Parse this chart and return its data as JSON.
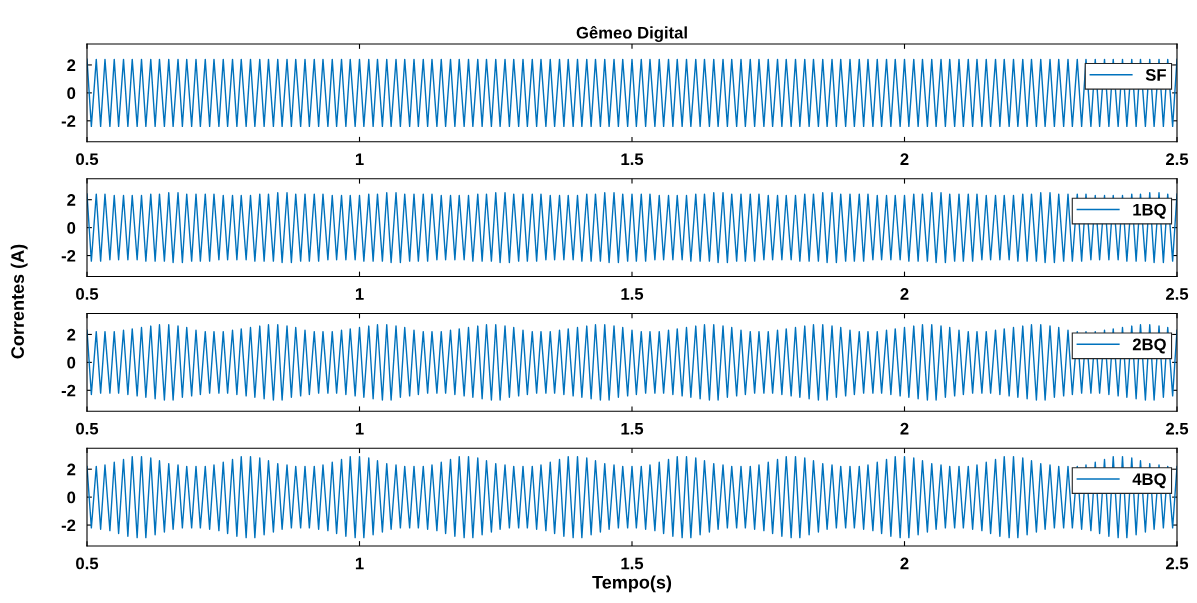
{
  "chart_data": [
    {
      "type": "line",
      "title": "Gêmeo Digital",
      "xlim": [
        0.5,
        2.5
      ],
      "xticks": [
        0.5,
        1,
        1.5,
        2,
        2.5
      ],
      "ylim": [
        -3.5,
        3.5
      ],
      "yticks": [
        -2,
        0,
        2
      ],
      "legend": "top right",
      "grid": false,
      "marker": "none",
      "line_style": "solid",
      "x": [
        0.5,
        0.508,
        0.517,
        0.525,
        0.533,
        0.542,
        0.55,
        0.558,
        0.567,
        0.575,
        0.583,
        0.592,
        0.6,
        0.608,
        0.617,
        0.625,
        0.633,
        0.642,
        0.65,
        0.658,
        0.667,
        0.675,
        0.683,
        0.692,
        0.7,
        0.708,
        0.717,
        0.725,
        0.733,
        0.742,
        0.75,
        0.758,
        0.767,
        0.775,
        0.783,
        0.792,
        0.8,
        0.808,
        0.817,
        0.825,
        0.833,
        0.842,
        0.85,
        0.858,
        0.867,
        0.875,
        0.883,
        0.892,
        0.9,
        0.908,
        0.917,
        0.925,
        0.933,
        0.942,
        0.95,
        0.958,
        0.967,
        0.975,
        0.983,
        0.992,
        1.0,
        1.008,
        1.017,
        1.025,
        1.033,
        1.042,
        1.05,
        1.058,
        1.067,
        1.075,
        1.083,
        1.092,
        1.1,
        1.108,
        1.117,
        1.125,
        1.133,
        1.142,
        1.15,
        1.158,
        1.167,
        1.175,
        1.183,
        1.192,
        1.2,
        1.208,
        1.217,
        1.225,
        1.233,
        1.242,
        1.25,
        1.258,
        1.267,
        1.275,
        1.283,
        1.292,
        1.3,
        1.308,
        1.317,
        1.325,
        1.333,
        1.342,
        1.35,
        1.358,
        1.367,
        1.375,
        1.383,
        1.392,
        1.4,
        1.408,
        1.417,
        1.425,
        1.433,
        1.442,
        1.45,
        1.458,
        1.467,
        1.475,
        1.483,
        1.492,
        1.5,
        1.508,
        1.517,
        1.525,
        1.533,
        1.542,
        1.55,
        1.558,
        1.567,
        1.575,
        1.583,
        1.592,
        1.6,
        1.608,
        1.617,
        1.625,
        1.633,
        1.642,
        1.65,
        1.658,
        1.667,
        1.675,
        1.683,
        1.692,
        1.7,
        1.708,
        1.717,
        1.725,
        1.733,
        1.742,
        1.75,
        1.758,
        1.767,
        1.775,
        1.783,
        1.792,
        1.8,
        1.808,
        1.817,
        1.825,
        1.833,
        1.842,
        1.85,
        1.858,
        1.867,
        1.875,
        1.883,
        1.892,
        1.9,
        1.908,
        1.917,
        1.925,
        1.933,
        1.942,
        1.95,
        1.958,
        1.967,
        1.975,
        1.983,
        1.992,
        2.0,
        2.008,
        2.017,
        2.025,
        2.033,
        2.042,
        2.05,
        2.058,
        2.067,
        2.075,
        2.083,
        2.092,
        2.1,
        2.108,
        2.117,
        2.125,
        2.133,
        2.142,
        2.15,
        2.158,
        2.167,
        2.175,
        2.183,
        2.192,
        2.2,
        2.208,
        2.217,
        2.225,
        2.233,
        2.242,
        2.25,
        2.258,
        2.267,
        2.275,
        2.283,
        2.292,
        2.3,
        2.308,
        2.317,
        2.325,
        2.333,
        2.342,
        2.35,
        2.358,
        2.367,
        2.375,
        2.383,
        2.392,
        2.4,
        2.408,
        2.417,
        2.425,
        2.433,
        2.442,
        2.45,
        2.458,
        2.467,
        2.475,
        2.483,
        2.492,
        2.5
      ],
      "series": [
        {
          "name": "SF",
          "color": "#0072bd",
          "values": [
            2.4,
            -2.4,
            2.4,
            -2.4,
            2.4,
            -2.4,
            2.4,
            -2.4,
            2.4,
            -2.4,
            2.4,
            -2.4,
            2.4,
            -2.4,
            2.4,
            -2.4,
            2.4,
            -2.4,
            2.4,
            -2.4,
            2.4,
            -2.4,
            2.4,
            -2.4,
            2.4,
            -2.4,
            2.4,
            -2.4,
            2.4,
            -2.4,
            2.4,
            -2.4,
            2.4,
            -2.4,
            2.4,
            -2.4,
            2.4,
            -2.4,
            2.4,
            -2.4,
            2.4,
            -2.4,
            2.4,
            -2.4,
            2.4,
            -2.4,
            2.4,
            -2.4,
            2.4,
            -2.4,
            2.4,
            -2.4,
            2.4,
            -2.4,
            2.4,
            -2.4,
            2.4,
            -2.4,
            2.4,
            -2.4,
            2.4,
            -2.4,
            2.4,
            -2.4,
            2.4,
            -2.4,
            2.4,
            -2.4,
            2.4,
            -2.4,
            2.4,
            -2.4,
            2.4,
            -2.4,
            2.4,
            -2.4,
            2.4,
            -2.4,
            2.4,
            -2.4,
            2.4,
            -2.4,
            2.4,
            -2.4,
            2.4,
            -2.4,
            2.4,
            -2.4,
            2.4,
            -2.4,
            2.4,
            -2.4,
            2.4,
            -2.4,
            2.4,
            -2.4,
            2.4,
            -2.4,
            2.4,
            -2.4,
            2.4,
            -2.4,
            2.4,
            -2.4,
            2.4,
            -2.4,
            2.4,
            -2.4,
            2.4,
            -2.4,
            2.4,
            -2.4,
            2.4,
            -2.4,
            2.4,
            -2.4,
            2.4,
            -2.4,
            2.4,
            -2.4,
            2.4,
            -2.4,
            2.4,
            -2.4,
            2.4,
            -2.4,
            2.4,
            -2.4,
            2.4,
            -2.4,
            2.4,
            -2.4,
            2.4,
            -2.4,
            2.4,
            -2.4,
            2.4,
            -2.4,
            2.4,
            -2.4,
            2.4,
            -2.4,
            2.4,
            -2.4,
            2.4,
            -2.4,
            2.4,
            -2.4,
            2.4,
            -2.4,
            2.4,
            -2.4,
            2.4,
            -2.4,
            2.4,
            -2.4,
            2.4,
            -2.4,
            2.4,
            -2.4,
            2.4,
            -2.4,
            2.4,
            -2.4,
            2.4,
            -2.4,
            2.4,
            -2.4,
            2.4,
            -2.4,
            2.4,
            -2.4,
            2.4,
            -2.4,
            2.4,
            -2.4,
            2.4,
            -2.4,
            2.4,
            -2.4,
            2.4,
            -2.4,
            2.4,
            -2.4,
            2.4,
            -2.4,
            2.4,
            -2.4,
            2.4,
            -2.4,
            2.4,
            -2.4,
            2.4,
            -2.4,
            2.4,
            -2.4,
            2.4,
            -2.4,
            2.4,
            -2.4,
            2.4,
            -2.4,
            2.4,
            -2.4,
            2.4,
            -2.4,
            2.4,
            -2.4,
            2.4,
            -2.4,
            2.4,
            -2.4,
            2.4,
            -2.4,
            2.4,
            -2.4,
            2.4,
            -2.4,
            2.4,
            -2.4,
            2.4,
            -2.4,
            2.4,
            -2.4,
            2.4,
            -2.4,
            2.4,
            -2.4,
            2.4,
            -2.4,
            2.4,
            -2.4,
            2.4,
            -2.4,
            2.4,
            -2.4,
            2.4,
            -2.4,
            2.4,
            -2.4,
            2.4
          ]
        }
      ]
    },
    {
      "type": "line",
      "ylabel": "Correntes (A)",
      "xlim": [
        0.5,
        2.5
      ],
      "xticks": [
        0.5,
        1,
        1.5,
        2,
        2.5
      ],
      "ylim": [
        -3.5,
        3.5
      ],
      "yticks": [
        -2,
        0,
        2
      ],
      "legend": "top right",
      "grid": false,
      "marker": "none",
      "line_style": "solid",
      "x": [
        0.5,
        0.508,
        0.517,
        0.525,
        0.533,
        0.542,
        0.55,
        0.558,
        0.567,
        0.575,
        0.583,
        0.592,
        0.6,
        0.608,
        0.617,
        0.625,
        0.633,
        0.642,
        0.65,
        0.658,
        0.667,
        0.675,
        0.683,
        0.692,
        0.7,
        0.708,
        0.717,
        0.725,
        0.733,
        0.742,
        0.75,
        0.758,
        0.767,
        0.775,
        0.783,
        0.792,
        0.8,
        0.808,
        0.817,
        0.825,
        0.833,
        0.842,
        0.85,
        0.858,
        0.867,
        0.875,
        0.883,
        0.892,
        0.9,
        0.908,
        0.917,
        0.925,
        0.933,
        0.942,
        0.95,
        0.958,
        0.967,
        0.975,
        0.983,
        0.992,
        1.0,
        1.008,
        1.017,
        1.025,
        1.033,
        1.042,
        1.05,
        1.058,
        1.067,
        1.075,
        1.083,
        1.092,
        1.1,
        1.108,
        1.117,
        1.125,
        1.133,
        1.142,
        1.15,
        1.158,
        1.167,
        1.175,
        1.183,
        1.192,
        1.2,
        1.208,
        1.217,
        1.225,
        1.233,
        1.242,
        1.25,
        1.258,
        1.267,
        1.275,
        1.283,
        1.292,
        1.3,
        1.308,
        1.317,
        1.325,
        1.333,
        1.342,
        1.35,
        1.358,
        1.367,
        1.375,
        1.383,
        1.392,
        1.4,
        1.408,
        1.417,
        1.425,
        1.433,
        1.442,
        1.45,
        1.458,
        1.467,
        1.475,
        1.483,
        1.492,
        1.5,
        1.508,
        1.517,
        1.525,
        1.533,
        1.542,
        1.55,
        1.558,
        1.567,
        1.575,
        1.583,
        1.592,
        1.6,
        1.608,
        1.617,
        1.625,
        1.633,
        1.642,
        1.65,
        1.658,
        1.667,
        1.675,
        1.683,
        1.692,
        1.7,
        1.708,
        1.717,
        1.725,
        1.733,
        1.742,
        1.75,
        1.758,
        1.767,
        1.775,
        1.783,
        1.792,
        1.8,
        1.808,
        1.817,
        1.825,
        1.833,
        1.842,
        1.85,
        1.858,
        1.867,
        1.875,
        1.883,
        1.892,
        1.9,
        1.908,
        1.917,
        1.925,
        1.933,
        1.942,
        1.95,
        1.958,
        1.967,
        1.975,
        1.983,
        1.992,
        2.0,
        2.008,
        2.017,
        2.025,
        2.033,
        2.042,
        2.05,
        2.058,
        2.067,
        2.075,
        2.083,
        2.092,
        2.1,
        2.108,
        2.117,
        2.125,
        2.133,
        2.142,
        2.15,
        2.158,
        2.167,
        2.175,
        2.183,
        2.192,
        2.2,
        2.208,
        2.217,
        2.225,
        2.233,
        2.242,
        2.25,
        2.258,
        2.267,
        2.275,
        2.283,
        2.292,
        2.3,
        2.308,
        2.317,
        2.325,
        2.333,
        2.342,
        2.35,
        2.358,
        2.367,
        2.375,
        2.383,
        2.392,
        2.4,
        2.408,
        2.417,
        2.425,
        2.433,
        2.442,
        2.45,
        2.458,
        2.467,
        2.475,
        2.483,
        2.492,
        2.5
      ],
      "series": [
        {
          "name": "1BQ",
          "color": "#0072bd",
          "values": [
            2.4,
            -2.4,
            2.4,
            -2.4,
            2.4,
            -2.3,
            2.3,
            -2.3,
            2.3,
            -2.3,
            2.3,
            -2.3,
            2.3,
            -2.4,
            2.4,
            -2.4,
            2.4,
            -2.4,
            2.5,
            -2.5,
            2.5,
            -2.5,
            2.4,
            -2.4,
            2.4,
            -2.4,
            2.4,
            -2.4,
            2.4,
            -2.3,
            2.3,
            -2.3,
            2.3,
            -2.3,
            2.3,
            -2.3,
            2.3,
            -2.4,
            2.4,
            -2.4,
            2.4,
            -2.4,
            2.5,
            -2.5,
            2.5,
            -2.5,
            2.4,
            -2.4,
            2.4,
            -2.4,
            2.4,
            -2.4,
            2.4,
            -2.3,
            2.3,
            -2.3,
            2.3,
            -2.3,
            2.3,
            -2.3,
            2.3,
            -2.4,
            2.4,
            -2.4,
            2.4,
            -2.4,
            2.5,
            -2.5,
            2.5,
            -2.5,
            2.4,
            -2.4,
            2.4,
            -2.4,
            2.4,
            -2.4,
            2.4,
            -2.3,
            2.3,
            -2.3,
            2.3,
            -2.3,
            2.3,
            -2.3,
            2.3,
            -2.4,
            2.4,
            -2.4,
            2.4,
            -2.4,
            2.5,
            -2.5,
            2.5,
            -2.5,
            2.4,
            -2.4,
            2.4,
            -2.4,
            2.4,
            -2.4,
            2.4,
            -2.3,
            2.3,
            -2.3,
            2.3,
            -2.3,
            2.3,
            -2.3,
            2.3,
            -2.4,
            2.4,
            -2.4,
            2.4,
            -2.4,
            2.5,
            -2.5,
            2.5,
            -2.5,
            2.4,
            -2.4,
            2.4,
            -2.4,
            2.4,
            -2.4,
            2.4,
            -2.3,
            2.3,
            -2.3,
            2.3,
            -2.3,
            2.3,
            -2.3,
            2.3,
            -2.4,
            2.4,
            -2.4,
            2.4,
            -2.4,
            2.5,
            -2.5,
            2.5,
            -2.5,
            2.4,
            -2.4,
            2.4,
            -2.4,
            2.4,
            -2.4,
            2.4,
            -2.3,
            2.3,
            -2.3,
            2.3,
            -2.3,
            2.3,
            -2.3,
            2.3,
            -2.4,
            2.4,
            -2.4,
            2.4,
            -2.4,
            2.5,
            -2.5,
            2.5,
            -2.5,
            2.4,
            -2.4,
            2.4,
            -2.4,
            2.4,
            -2.4,
            2.4,
            -2.3,
            2.3,
            -2.3,
            2.3,
            -2.3,
            2.3,
            -2.3,
            2.3,
            -2.4,
            2.4,
            -2.4,
            2.4,
            -2.4,
            2.5,
            -2.5,
            2.5,
            -2.5,
            2.4,
            -2.4,
            2.4,
            -2.4,
            2.4,
            -2.4,
            2.4,
            -2.3,
            2.3,
            -2.3,
            2.3,
            -2.3,
            2.3,
            -2.3,
            2.3,
            -2.4,
            2.4,
            -2.4,
            2.4,
            -2.4,
            2.5,
            -2.5,
            2.5,
            -2.5,
            2.4,
            -2.4,
            2.4,
            -2.4,
            2.4,
            -2.4,
            2.4,
            -2.3,
            2.3,
            -2.3,
            2.3,
            -2.3,
            2.3,
            -2.3,
            2.3,
            -2.4,
            2.4,
            -2.4,
            2.4,
            -2.4,
            2.5,
            -2.5,
            2.5,
            -2.5,
            2.4,
            -2.4,
            2.4
          ]
        }
      ]
    },
    {
      "type": "line",
      "xlim": [
        0.5,
        2.5
      ],
      "xticks": [
        0.5,
        1,
        1.5,
        2,
        2.5
      ],
      "ylim": [
        -3.5,
        3.5
      ],
      "yticks": [
        -2,
        0,
        2
      ],
      "legend": "top right",
      "grid": false,
      "marker": "none",
      "line_style": "solid",
      "x": [
        0.5,
        0.508,
        0.517,
        0.525,
        0.533,
        0.542,
        0.55,
        0.558,
        0.567,
        0.575,
        0.583,
        0.592,
        0.6,
        0.608,
        0.617,
        0.625,
        0.633,
        0.642,
        0.65,
        0.658,
        0.667,
        0.675,
        0.683,
        0.692,
        0.7,
        0.708,
        0.717,
        0.725,
        0.733,
        0.742,
        0.75,
        0.758,
        0.767,
        0.775,
        0.783,
        0.792,
        0.8,
        0.808,
        0.817,
        0.825,
        0.833,
        0.842,
        0.85,
        0.858,
        0.867,
        0.875,
        0.883,
        0.892,
        0.9,
        0.908,
        0.917,
        0.925,
        0.933,
        0.942,
        0.95,
        0.958,
        0.967,
        0.975,
        0.983,
        0.992,
        1.0,
        1.008,
        1.017,
        1.025,
        1.033,
        1.042,
        1.05,
        1.058,
        1.067,
        1.075,
        1.083,
        1.092,
        1.1,
        1.108,
        1.117,
        1.125,
        1.133,
        1.142,
        1.15,
        1.158,
        1.167,
        1.175,
        1.183,
        1.192,
        1.2,
        1.208,
        1.217,
        1.225,
        1.233,
        1.242,
        1.25,
        1.258,
        1.267,
        1.275,
        1.283,
        1.292,
        1.3,
        1.308,
        1.317,
        1.325,
        1.333,
        1.342,
        1.35,
        1.358,
        1.367,
        1.375,
        1.383,
        1.392,
        1.4,
        1.408,
        1.417,
        1.425,
        1.433,
        1.442,
        1.45,
        1.458,
        1.467,
        1.475,
        1.483,
        1.492,
        1.5,
        1.508,
        1.517,
        1.525,
        1.533,
        1.542,
        1.55,
        1.558,
        1.567,
        1.575,
        1.583,
        1.592,
        1.6,
        1.608,
        1.617,
        1.625,
        1.633,
        1.642,
        1.65,
        1.658,
        1.667,
        1.675,
        1.683,
        1.692,
        1.7,
        1.708,
        1.717,
        1.725,
        1.733,
        1.742,
        1.75,
        1.758,
        1.767,
        1.775,
        1.783,
        1.792,
        1.8,
        1.808,
        1.817,
        1.825,
        1.833,
        1.842,
        1.85,
        1.858,
        1.867,
        1.875,
        1.883,
        1.892,
        1.9,
        1.908,
        1.917,
        1.925,
        1.933,
        1.942,
        1.95,
        1.958,
        1.967,
        1.975,
        1.983,
        1.992,
        2.0,
        2.008,
        2.017,
        2.025,
        2.033,
        2.042,
        2.05,
        2.058,
        2.067,
        2.075,
        2.083,
        2.092,
        2.1,
        2.108,
        2.117,
        2.125,
        2.133,
        2.142,
        2.15,
        2.158,
        2.167,
        2.175,
        2.183,
        2.192,
        2.2,
        2.208,
        2.217,
        2.225,
        2.233,
        2.242,
        2.25,
        2.258,
        2.267,
        2.275,
        2.283,
        2.292,
        2.3,
        2.308,
        2.317,
        2.325,
        2.333,
        2.342,
        2.35,
        2.358,
        2.367,
        2.375,
        2.383,
        2.392,
        2.4,
        2.408,
        2.417,
        2.425,
        2.433,
        2.442,
        2.45,
        2.458,
        2.467,
        2.475,
        2.483,
        2.492,
        2.5
      ],
      "series": [
        {
          "name": "2BQ",
          "color": "#0072bd",
          "values": [
            2.3,
            -2.3,
            2.2,
            -2.2,
            2.2,
            -2.2,
            2.2,
            -2.2,
            2.3,
            -2.3,
            2.4,
            -2.4,
            2.5,
            -2.5,
            2.6,
            -2.6,
            2.7,
            -2.7,
            2.7,
            -2.7,
            2.6,
            -2.5,
            2.5,
            -2.4,
            2.3,
            -2.3,
            2.2,
            -2.2,
            2.2,
            -2.2,
            2.2,
            -2.2,
            2.3,
            -2.3,
            2.4,
            -2.4,
            2.5,
            -2.5,
            2.6,
            -2.6,
            2.7,
            -2.7,
            2.7,
            -2.7,
            2.6,
            -2.5,
            2.5,
            -2.4,
            2.3,
            -2.3,
            2.2,
            -2.2,
            2.2,
            -2.2,
            2.2,
            -2.2,
            2.3,
            -2.3,
            2.4,
            -2.4,
            2.5,
            -2.5,
            2.6,
            -2.6,
            2.7,
            -2.7,
            2.7,
            -2.7,
            2.6,
            -2.5,
            2.5,
            -2.4,
            2.3,
            -2.3,
            2.2,
            -2.2,
            2.2,
            -2.2,
            2.2,
            -2.2,
            2.3,
            -2.3,
            2.4,
            -2.4,
            2.5,
            -2.5,
            2.6,
            -2.6,
            2.7,
            -2.7,
            2.7,
            -2.7,
            2.6,
            -2.5,
            2.5,
            -2.4,
            2.3,
            -2.3,
            2.2,
            -2.2,
            2.2,
            -2.2,
            2.2,
            -2.2,
            2.3,
            -2.3,
            2.4,
            -2.4,
            2.5,
            -2.5,
            2.6,
            -2.6,
            2.7,
            -2.7,
            2.7,
            -2.7,
            2.6,
            -2.5,
            2.5,
            -2.4,
            2.3,
            -2.3,
            2.2,
            -2.2,
            2.2,
            -2.2,
            2.2,
            -2.2,
            2.3,
            -2.3,
            2.4,
            -2.4,
            2.5,
            -2.5,
            2.6,
            -2.6,
            2.7,
            -2.7,
            2.7,
            -2.7,
            2.6,
            -2.5,
            2.5,
            -2.4,
            2.3,
            -2.3,
            2.2,
            -2.2,
            2.2,
            -2.2,
            2.2,
            -2.2,
            2.3,
            -2.3,
            2.4,
            -2.4,
            2.5,
            -2.5,
            2.6,
            -2.6,
            2.7,
            -2.7,
            2.7,
            -2.7,
            2.6,
            -2.5,
            2.5,
            -2.4,
            2.3,
            -2.3,
            2.2,
            -2.2,
            2.2,
            -2.2,
            2.2,
            -2.2,
            2.3,
            -2.3,
            2.4,
            -2.4,
            2.5,
            -2.5,
            2.6,
            -2.6,
            2.7,
            -2.7,
            2.7,
            -2.7,
            2.6,
            -2.5,
            2.5,
            -2.4,
            2.3,
            -2.3,
            2.2,
            -2.2,
            2.2,
            -2.2,
            2.2,
            -2.2,
            2.3,
            -2.3,
            2.4,
            -2.4,
            2.5,
            -2.5,
            2.6,
            -2.6,
            2.7,
            -2.7,
            2.7,
            -2.7,
            2.6,
            -2.5,
            2.5,
            -2.4,
            2.3,
            -2.3,
            2.2,
            -2.2,
            2.2,
            -2.2,
            2.2,
            -2.2,
            2.3,
            -2.3,
            2.4,
            -2.4,
            2.5,
            -2.5,
            2.6,
            -2.6,
            2.7,
            -2.7,
            2.7,
            -2.7,
            2.6,
            -2.5,
            2.5,
            -2.4,
            2.3
          ]
        }
      ]
    },
    {
      "type": "line",
      "xlabel": "Tempo(s)",
      "xlim": [
        0.5,
        2.5
      ],
      "xticks": [
        0.5,
        1,
        1.5,
        2,
        2.5
      ],
      "ylim": [
        -3.5,
        3.5
      ],
      "yticks": [
        -2,
        0,
        2
      ],
      "legend": "top right",
      "grid": false,
      "marker": "none",
      "line_style": "solid",
      "x": [
        0.5,
        0.508,
        0.517,
        0.525,
        0.533,
        0.542,
        0.55,
        0.558,
        0.567,
        0.575,
        0.583,
        0.592,
        0.6,
        0.608,
        0.617,
        0.625,
        0.633,
        0.642,
        0.65,
        0.658,
        0.667,
        0.675,
        0.683,
        0.692,
        0.7,
        0.708,
        0.717,
        0.725,
        0.733,
        0.742,
        0.75,
        0.758,
        0.767,
        0.775,
        0.783,
        0.792,
        0.8,
        0.808,
        0.817,
        0.825,
        0.833,
        0.842,
        0.85,
        0.858,
        0.867,
        0.875,
        0.883,
        0.892,
        0.9,
        0.908,
        0.917,
        0.925,
        0.933,
        0.942,
        0.95,
        0.958,
        0.967,
        0.975,
        0.983,
        0.992,
        1.0,
        1.008,
        1.017,
        1.025,
        1.033,
        1.042,
        1.05,
        1.058,
        1.067,
        1.075,
        1.083,
        1.092,
        1.1,
        1.108,
        1.117,
        1.125,
        1.133,
        1.142,
        1.15,
        1.158,
        1.167,
        1.175,
        1.183,
        1.192,
        1.2,
        1.208,
        1.217,
        1.225,
        1.233,
        1.242,
        1.25,
        1.258,
        1.267,
        1.275,
        1.283,
        1.292,
        1.3,
        1.308,
        1.317,
        1.325,
        1.333,
        1.342,
        1.35,
        1.358,
        1.367,
        1.375,
        1.383,
        1.392,
        1.4,
        1.408,
        1.417,
        1.425,
        1.433,
        1.442,
        1.45,
        1.458,
        1.467,
        1.475,
        1.483,
        1.492,
        1.5,
        1.508,
        1.517,
        1.525,
        1.533,
        1.542,
        1.55,
        1.558,
        1.567,
        1.575,
        1.583,
        1.592,
        1.6,
        1.608,
        1.617,
        1.625,
        1.633,
        1.642,
        1.65,
        1.658,
        1.667,
        1.675,
        1.683,
        1.692,
        1.7,
        1.708,
        1.717,
        1.725,
        1.733,
        1.742,
        1.75,
        1.758,
        1.767,
        1.775,
        1.783,
        1.792,
        1.8,
        1.808,
        1.817,
        1.825,
        1.833,
        1.842,
        1.85,
        1.858,
        1.867,
        1.875,
        1.883,
        1.892,
        1.9,
        1.908,
        1.917,
        1.925,
        1.933,
        1.942,
        1.95,
        1.958,
        1.967,
        1.975,
        1.983,
        1.992,
        2.0,
        2.008,
        2.017,
        2.025,
        2.033,
        2.042,
        2.05,
        2.058,
        2.067,
        2.075,
        2.083,
        2.092,
        2.1,
        2.108,
        2.117,
        2.125,
        2.133,
        2.142,
        2.15,
        2.158,
        2.167,
        2.175,
        2.183,
        2.192,
        2.2,
        2.208,
        2.217,
        2.225,
        2.233,
        2.242,
        2.25,
        2.258,
        2.267,
        2.275,
        2.283,
        2.292,
        2.3,
        2.308,
        2.317,
        2.325,
        2.333,
        2.342,
        2.35,
        2.358,
        2.367,
        2.375,
        2.383,
        2.392,
        2.4,
        2.408,
        2.417,
        2.425,
        2.433,
        2.442,
        2.45,
        2.458,
        2.467,
        2.475,
        2.483,
        2.492,
        2.5
      ],
      "series": [
        {
          "name": "4BQ",
          "color": "#0072bd",
          "values": [
            2.2,
            -2.2,
            2.2,
            -2.3,
            2.3,
            -2.4,
            2.5,
            -2.6,
            2.7,
            -2.8,
            2.9,
            -2.9,
            2.9,
            -2.9,
            2.8,
            -2.7,
            2.6,
            -2.5,
            2.4,
            -2.3,
            2.3,
            -2.2,
            2.2,
            -2.2,
            2.2,
            -2.2,
            2.2,
            -2.3,
            2.3,
            -2.4,
            2.5,
            -2.6,
            2.7,
            -2.8,
            2.9,
            -2.9,
            2.9,
            -2.9,
            2.8,
            -2.7,
            2.6,
            -2.5,
            2.4,
            -2.3,
            2.3,
            -2.2,
            2.2,
            -2.2,
            2.2,
            -2.2,
            2.2,
            -2.3,
            2.3,
            -2.4,
            2.5,
            -2.6,
            2.7,
            -2.8,
            2.9,
            -2.9,
            2.9,
            -2.9,
            2.8,
            -2.7,
            2.6,
            -2.5,
            2.4,
            -2.3,
            2.3,
            -2.2,
            2.2,
            -2.2,
            2.2,
            -2.2,
            2.2,
            -2.3,
            2.3,
            -2.4,
            2.5,
            -2.6,
            2.7,
            -2.8,
            2.9,
            -2.9,
            2.9,
            -2.9,
            2.8,
            -2.7,
            2.6,
            -2.5,
            2.4,
            -2.3,
            2.3,
            -2.2,
            2.2,
            -2.2,
            2.2,
            -2.2,
            2.2,
            -2.3,
            2.3,
            -2.4,
            2.5,
            -2.6,
            2.7,
            -2.8,
            2.9,
            -2.9,
            2.9,
            -2.9,
            2.8,
            -2.7,
            2.6,
            -2.5,
            2.4,
            -2.3,
            2.3,
            -2.2,
            2.2,
            -2.2,
            2.2,
            -2.2,
            2.2,
            -2.3,
            2.3,
            -2.4,
            2.5,
            -2.6,
            2.7,
            -2.8,
            2.9,
            -2.9,
            2.9,
            -2.9,
            2.8,
            -2.7,
            2.6,
            -2.5,
            2.4,
            -2.3,
            2.3,
            -2.2,
            2.2,
            -2.2,
            2.2,
            -2.2,
            2.2,
            -2.3,
            2.3,
            -2.4,
            2.5,
            -2.6,
            2.7,
            -2.8,
            2.9,
            -2.9,
            2.9,
            -2.9,
            2.8,
            -2.7,
            2.6,
            -2.5,
            2.4,
            -2.3,
            2.3,
            -2.2,
            2.2,
            -2.2,
            2.2,
            -2.2,
            2.2,
            -2.3,
            2.3,
            -2.4,
            2.5,
            -2.6,
            2.7,
            -2.8,
            2.9,
            -2.9,
            2.9,
            -2.9,
            2.8,
            -2.7,
            2.6,
            -2.5,
            2.4,
            -2.3,
            2.3,
            -2.2,
            2.2,
            -2.2,
            2.2,
            -2.2,
            2.2,
            -2.3,
            2.3,
            -2.4,
            2.5,
            -2.6,
            2.7,
            -2.8,
            2.9,
            -2.9,
            2.9,
            -2.9,
            2.8,
            -2.7,
            2.6,
            -2.5,
            2.4,
            -2.3,
            2.3,
            -2.2,
            2.2,
            -2.2,
            2.2,
            -2.2,
            2.2,
            -2.3,
            2.3,
            -2.4,
            2.5,
            -2.6,
            2.7,
            -2.8,
            2.9,
            -2.9,
            2.9,
            -2.9,
            2.8,
            -2.7,
            2.6,
            -2.5,
            2.4,
            -2.3,
            2.3,
            -2.2,
            2.2,
            -2.2,
            2.2
          ]
        }
      ]
    }
  ]
}
